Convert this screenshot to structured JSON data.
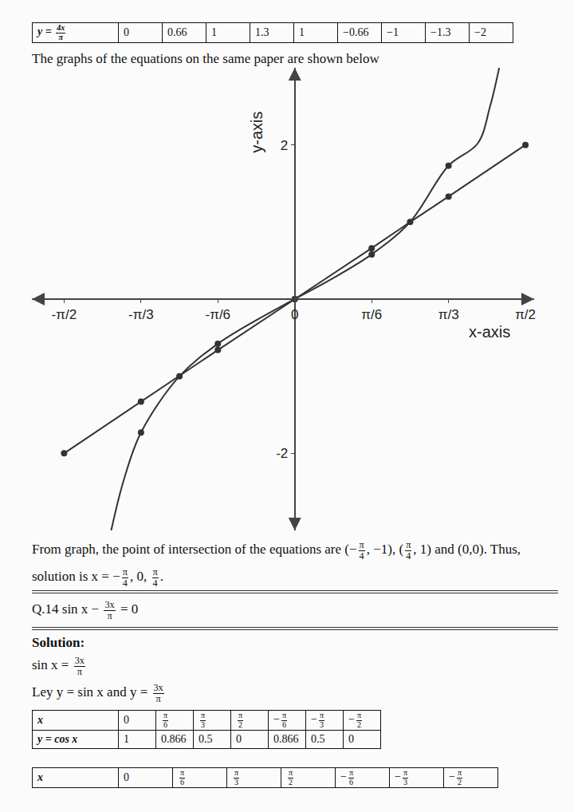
{
  "document": {
    "top_table": {
      "rows": [
        [
          [
            "y = ",
            {
              "frac": [
                "4x",
                "π"
              ]
            }
          ],
          "0",
          "0.66",
          "1",
          "1.3",
          "1",
          "−0.66",
          "−1",
          "−1.3",
          "−2"
        ]
      ]
    },
    "caption": "The graphs of the equations on the same paper are shown below",
    "result": [
      "From graph, the point of intersection of the equations are (−",
      {
        "frac": [
          "π",
          "4"
        ]
      },
      ", −1), (",
      {
        "frac": [
          "π",
          "4"
        ]
      },
      ", 1) and (0,0). Thus, solution is x = −",
      {
        "frac": [
          "π",
          "4"
        ]
      },
      ", 0, ",
      {
        "frac": [
          "π",
          "4"
        ]
      },
      "."
    ],
    "question": [
      "Q.14 sin x − ",
      {
        "frac": [
          "3x",
          "π"
        ]
      },
      " = 0"
    ],
    "solution_heading": "Solution:",
    "steps": [
      [
        "sin x = ",
        {
          "frac": [
            "3x",
            "π"
          ]
        }
      ],
      [
        "Ley y = sin x and y = ",
        {
          "frac": [
            "3x",
            "π"
          ]
        }
      ]
    ],
    "tables": [
      {
        "rows": [
          [
            "x",
            "0",
            {
              "frac": [
                "π",
                "6"
              ]
            },
            {
              "frac": [
                "π",
                "3"
              ]
            },
            {
              "frac": [
                "π",
                "2"
              ]
            },
            [
              "−",
              {
                "frac": [
                  "π",
                  "6"
                ]
              }
            ],
            [
              "−",
              {
                "frac": [
                  "π",
                  "3"
                ]
              }
            ],
            [
              "−",
              {
                "frac": [
                  "π",
                  "2"
                ]
              }
            ]
          ],
          [
            "y = cos x",
            "1",
            "0.866",
            "0.5",
            "0",
            "0.866",
            "0.5",
            "0"
          ]
        ]
      },
      {
        "rows": [
          [
            "x",
            "0",
            {
              "frac": [
                "π",
                "6"
              ]
            },
            {
              "frac": [
                "π",
                "3"
              ]
            },
            {
              "frac": [
                "π",
                "2"
              ]
            },
            [
              "−",
              {
                "frac": [
                  "π",
                  "6"
                ]
              }
            ],
            [
              "−",
              {
                "frac": [
                  "π",
                  "3"
                ]
              }
            ],
            [
              "−",
              {
                "frac": [
                  "π",
                  "2"
                ]
              }
            ]
          ]
        ]
      }
    ]
  },
  "chart_data": {
    "type": "line",
    "axis_labels": {
      "x": "x-axis",
      "y": "y-axis"
    },
    "xlim": [
      -1.79,
      1.63
    ],
    "ylim": [
      -3,
      3
    ],
    "xticks": [
      {
        "value": -1.5708,
        "label": "-π/2"
      },
      {
        "value": -1.0472,
        "label": "-π/3"
      },
      {
        "value": -0.5236,
        "label": "-π/6"
      },
      0,
      {
        "value": 0.5236,
        "label": "π/6"
      },
      {
        "value": 1.0472,
        "label": "π/3"
      },
      {
        "value": 1.5708,
        "label": "π/2"
      }
    ],
    "yticks": [
      -2,
      2
    ],
    "grid": false,
    "series": [
      {
        "color": "#333333",
        "marker": "circle",
        "line_style": "solid",
        "x": [
          -1.5708,
          -1.0472,
          -0.7854,
          -0.5236,
          0,
          0.5236,
          0.7854,
          1.0472,
          1.5708
        ],
        "values": [
          -2,
          -1.33,
          -1,
          -0.66,
          0,
          0.66,
          1,
          1.33,
          2
        ]
      },
      {
        "color": "#333333",
        "marker": "none",
        "line_style": "solid",
        "x": [
          -1.25,
          -1.165,
          -1.047,
          -0.785,
          -0.524,
          -0.25,
          0,
          0.25,
          0.524,
          0.785,
          1.047,
          1.246,
          1.33,
          1.392
        ],
        "values": [
          -3.0,
          -2.35,
          -1.73,
          -1,
          -0.58,
          -0.26,
          0,
          0.26,
          0.58,
          1,
          1.73,
          2.02,
          2.5,
          3.0
        ]
      },
      {
        "color": "#333333",
        "marker": "circle",
        "line_style": "none",
        "x": [
          -1.047,
          -0.524,
          0,
          0.524,
          1.047
        ],
        "values": [
          -1.73,
          -0.58,
          0,
          0.58,
          1.73
        ]
      }
    ]
  }
}
